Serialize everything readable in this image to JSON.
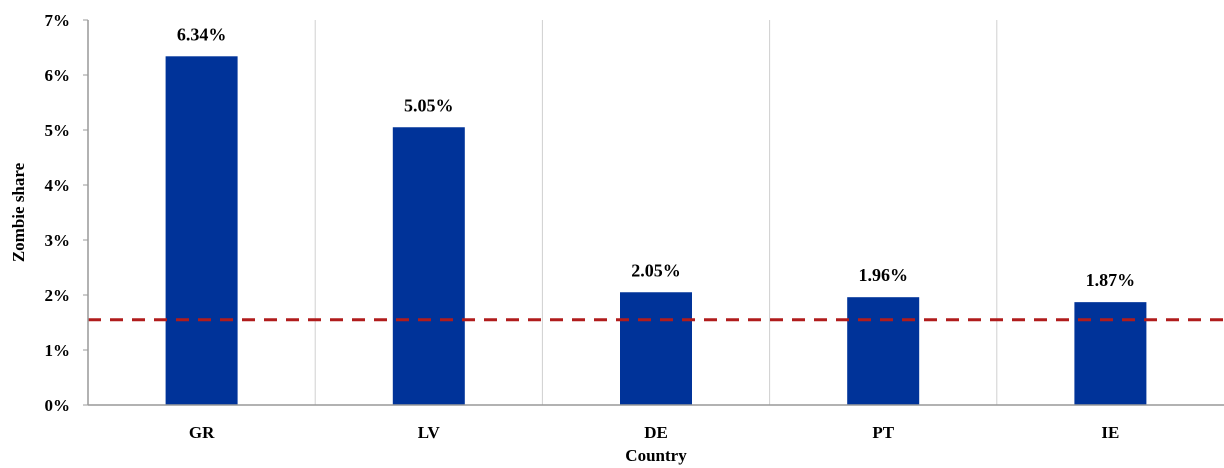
{
  "chart_data": {
    "type": "bar",
    "categories": [
      "GR",
      "LV",
      "DE",
      "PT",
      "IE"
    ],
    "values": [
      6.34,
      5.05,
      2.05,
      1.96,
      1.87
    ],
    "data_labels": [
      "6.34%",
      "5.05%",
      "2.05%",
      "1.96%",
      "1.87%"
    ],
    "ylim": [
      0,
      7
    ],
    "yticks": [
      0,
      1,
      2,
      3,
      4,
      5,
      6,
      7
    ],
    "ytick_labels": [
      "0%",
      "1%",
      "2%",
      "3%",
      "4%",
      "5%",
      "6%",
      "7%"
    ],
    "xlabel": "Country",
    "ylabel": "Zombie share",
    "reference_line": {
      "value": 1.55,
      "style": "dashed",
      "color": "#b01c1c"
    },
    "grid": {
      "vertical": true,
      "horizontal": false
    },
    "colors": {
      "bar": "#003399",
      "axis": "#999999",
      "grid": "#d0d0d0"
    }
  }
}
